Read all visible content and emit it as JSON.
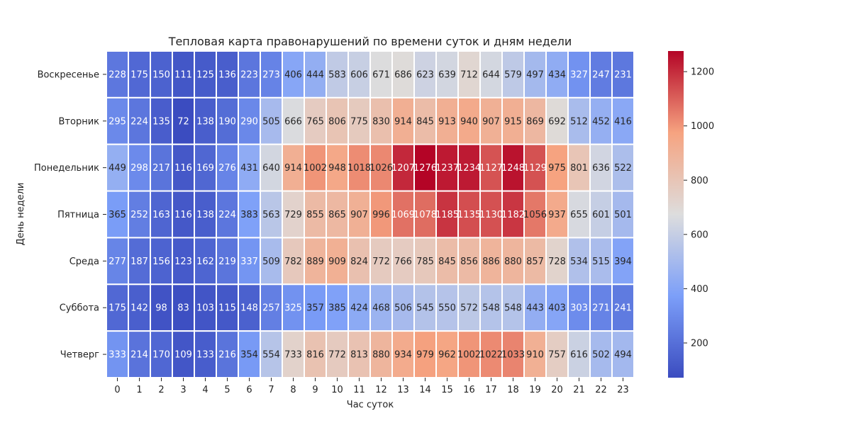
{
  "chart_data": {
    "type": "heatmap",
    "title": "Тепловая карта правонарушений по времени суток и дням недели",
    "xlabel": "Час суток",
    "ylabel": "День недели",
    "colormap": "coolwarm",
    "grid": true,
    "legend": "colorbar-right",
    "colorbar": {
      "min": 72,
      "max": 1276,
      "ticks": [
        200,
        400,
        600,
        800,
        1000,
        1200
      ]
    },
    "x": [
      "0",
      "1",
      "2",
      "3",
      "4",
      "5",
      "6",
      "7",
      "8",
      "9",
      "10",
      "11",
      "12",
      "13",
      "14",
      "15",
      "16",
      "17",
      "18",
      "19",
      "20",
      "21",
      "22",
      "23"
    ],
    "y": [
      "Воскресенье",
      "Вторник",
      "Понедельник",
      "Пятница",
      "Среда",
      "Суббота",
      "Четверг"
    ],
    "values": [
      [
        228,
        175,
        150,
        111,
        125,
        136,
        223,
        273,
        406,
        444,
        583,
        606,
        671,
        686,
        623,
        639,
        712,
        644,
        579,
        497,
        434,
        327,
        247,
        231
      ],
      [
        295,
        224,
        135,
        72,
        138,
        190,
        290,
        505,
        666,
        765,
        806,
        775,
        830,
        914,
        845,
        913,
        940,
        907,
        915,
        869,
        692,
        512,
        452,
        416
      ],
      [
        449,
        298,
        217,
        116,
        169,
        276,
        431,
        640,
        914,
        1002,
        948,
        1018,
        1026,
        1207,
        1276,
        1237,
        1234,
        1127,
        1248,
        1129,
        975,
        801,
        636,
        522
      ],
      [
        365,
        252,
        163,
        116,
        138,
        224,
        383,
        563,
        729,
        855,
        865,
        907,
        996,
        1069,
        1078,
        1185,
        1135,
        1130,
        1182,
        1056,
        937,
        655,
        601,
        501
      ],
      [
        277,
        187,
        156,
        123,
        162,
        219,
        337,
        509,
        782,
        889,
        909,
        824,
        772,
        766,
        785,
        845,
        856,
        886,
        880,
        857,
        728,
        534,
        515,
        394
      ],
      [
        175,
        142,
        98,
        83,
        103,
        115,
        148,
        257,
        325,
        357,
        385,
        424,
        468,
        506,
        545,
        550,
        572,
        548,
        548,
        443,
        403,
        303,
        271,
        241
      ],
      [
        333,
        214,
        170,
        109,
        133,
        216,
        354,
        554,
        733,
        816,
        772,
        813,
        880,
        934,
        979,
        962,
        1002,
        1022,
        1033,
        910,
        757,
        616,
        502,
        494
      ]
    ]
  }
}
